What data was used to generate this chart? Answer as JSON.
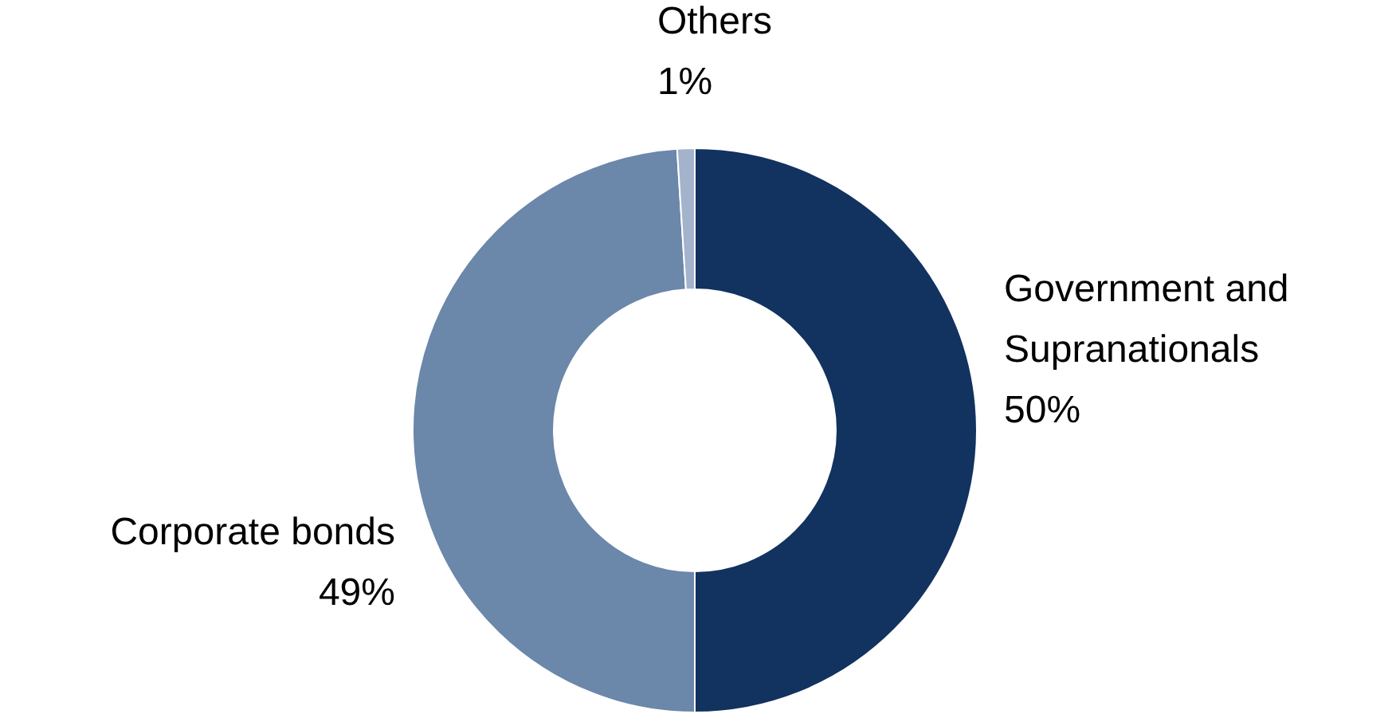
{
  "chart_data": {
    "type": "donut",
    "categories": [
      "Government and Supranationals",
      "Corporate bonds",
      "Others"
    ],
    "values": [
      50,
      49,
      1
    ],
    "colors": [
      "#12325f",
      "#6b87aa",
      "#a3b3cb"
    ],
    "value_labels": [
      "50%",
      "49%",
      "1%"
    ]
  }
}
